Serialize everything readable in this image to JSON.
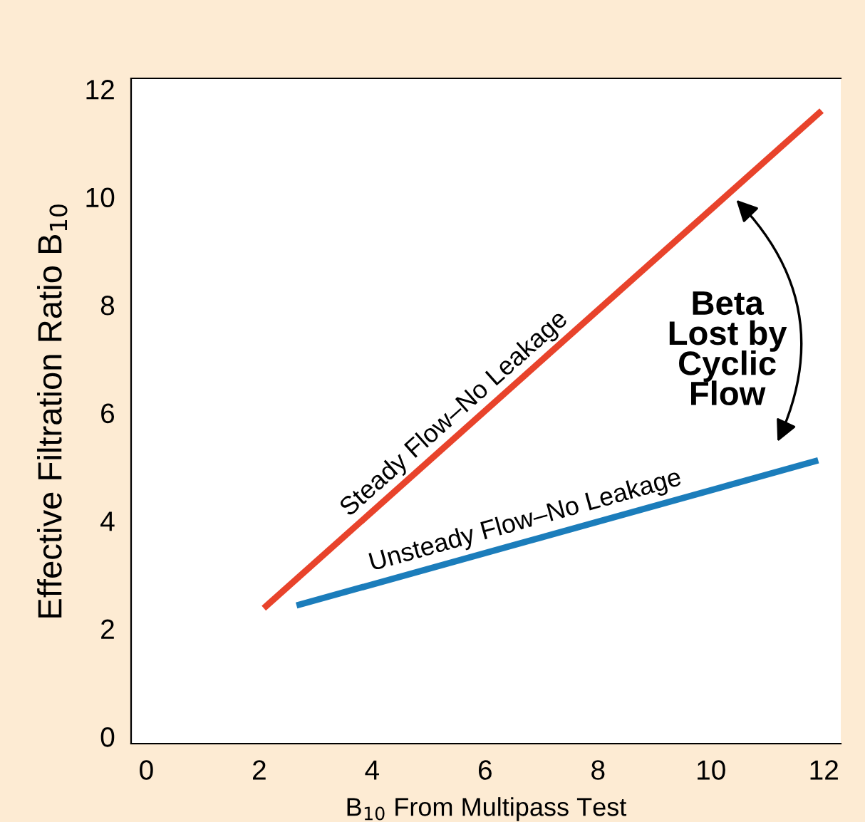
{
  "chart_data": {
    "type": "line",
    "xlabel": "B$_{10}$ From Multipass Test",
    "ylabel": "Effective Filtration Ratio B$_{10}$",
    "xlim": [
      -0.27,
      12.3
    ],
    "ylim": [
      -0.13,
      12.2
    ],
    "xticks": [
      0,
      2,
      4,
      6,
      8,
      10,
      12
    ],
    "yticks": [
      0,
      2,
      4,
      6,
      8,
      10,
      12
    ],
    "grid": false,
    "legend": false,
    "marker": "none",
    "line_style": "solid",
    "series": [
      {
        "color": "#e8432b",
        "x": [
          2.08,
          11.96
        ],
        "values": [
          2.38,
          11.6
        ]
      },
      {
        "color": "#1b7dbb",
        "x": [
          2.66,
          11.9
        ],
        "values": [
          2.43,
          5.12
        ]
      }
    ],
    "annotations": [
      {
        "text": "Steady Flow–No Leakage",
        "x": 5.6,
        "y": 5.66
      },
      {
        "text": "Unsteady Flow–No Leakage",
        "x": 6.77,
        "y": 3.63
      },
      "Beta\nLost by\nCyclic\nFlow"
    ]
  }
}
